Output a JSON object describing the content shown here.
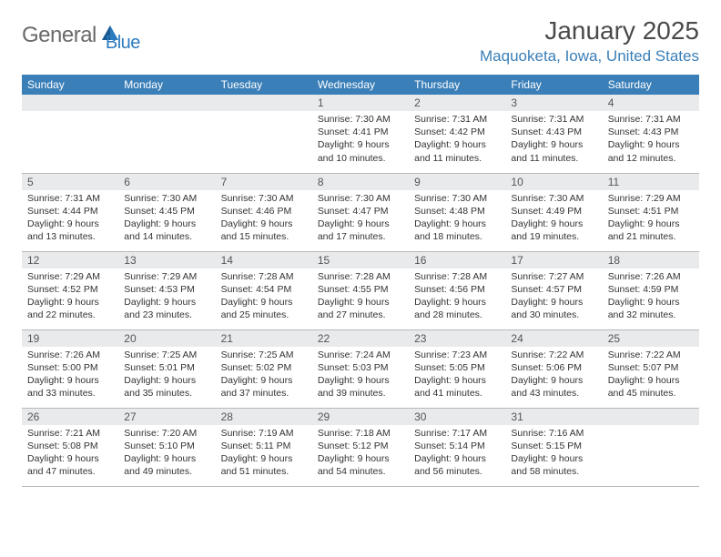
{
  "logo": {
    "general": "General",
    "blue": "Blue"
  },
  "title": "January 2025",
  "location": "Maquoketa, Iowa, United States",
  "colors": {
    "header_bg": "#3a7fb8",
    "header_text": "#ffffff",
    "daynum_bg": "#e8eaec",
    "border": "#b8b8b8",
    "body_text": "#333333",
    "location_text": "#3a7fb8",
    "logo_gray": "#6a6a6a",
    "logo_blue": "#2b7bbf"
  },
  "weekdays": [
    "Sunday",
    "Monday",
    "Tuesday",
    "Wednesday",
    "Thursday",
    "Friday",
    "Saturday"
  ],
  "weeks": [
    [
      null,
      null,
      null,
      {
        "d": "1",
        "sr": "7:30 AM",
        "ss": "4:41 PM",
        "dl": "9 hours and 10 minutes."
      },
      {
        "d": "2",
        "sr": "7:31 AM",
        "ss": "4:42 PM",
        "dl": "9 hours and 11 minutes."
      },
      {
        "d": "3",
        "sr": "7:31 AM",
        "ss": "4:43 PM",
        "dl": "9 hours and 11 minutes."
      },
      {
        "d": "4",
        "sr": "7:31 AM",
        "ss": "4:43 PM",
        "dl": "9 hours and 12 minutes."
      }
    ],
    [
      {
        "d": "5",
        "sr": "7:31 AM",
        "ss": "4:44 PM",
        "dl": "9 hours and 13 minutes."
      },
      {
        "d": "6",
        "sr": "7:30 AM",
        "ss": "4:45 PM",
        "dl": "9 hours and 14 minutes."
      },
      {
        "d": "7",
        "sr": "7:30 AM",
        "ss": "4:46 PM",
        "dl": "9 hours and 15 minutes."
      },
      {
        "d": "8",
        "sr": "7:30 AM",
        "ss": "4:47 PM",
        "dl": "9 hours and 17 minutes."
      },
      {
        "d": "9",
        "sr": "7:30 AM",
        "ss": "4:48 PM",
        "dl": "9 hours and 18 minutes."
      },
      {
        "d": "10",
        "sr": "7:30 AM",
        "ss": "4:49 PM",
        "dl": "9 hours and 19 minutes."
      },
      {
        "d": "11",
        "sr": "7:29 AM",
        "ss": "4:51 PM",
        "dl": "9 hours and 21 minutes."
      }
    ],
    [
      {
        "d": "12",
        "sr": "7:29 AM",
        "ss": "4:52 PM",
        "dl": "9 hours and 22 minutes."
      },
      {
        "d": "13",
        "sr": "7:29 AM",
        "ss": "4:53 PM",
        "dl": "9 hours and 23 minutes."
      },
      {
        "d": "14",
        "sr": "7:28 AM",
        "ss": "4:54 PM",
        "dl": "9 hours and 25 minutes."
      },
      {
        "d": "15",
        "sr": "7:28 AM",
        "ss": "4:55 PM",
        "dl": "9 hours and 27 minutes."
      },
      {
        "d": "16",
        "sr": "7:28 AM",
        "ss": "4:56 PM",
        "dl": "9 hours and 28 minutes."
      },
      {
        "d": "17",
        "sr": "7:27 AM",
        "ss": "4:57 PM",
        "dl": "9 hours and 30 minutes."
      },
      {
        "d": "18",
        "sr": "7:26 AM",
        "ss": "4:59 PM",
        "dl": "9 hours and 32 minutes."
      }
    ],
    [
      {
        "d": "19",
        "sr": "7:26 AM",
        "ss": "5:00 PM",
        "dl": "9 hours and 33 minutes."
      },
      {
        "d": "20",
        "sr": "7:25 AM",
        "ss": "5:01 PM",
        "dl": "9 hours and 35 minutes."
      },
      {
        "d": "21",
        "sr": "7:25 AM",
        "ss": "5:02 PM",
        "dl": "9 hours and 37 minutes."
      },
      {
        "d": "22",
        "sr": "7:24 AM",
        "ss": "5:03 PM",
        "dl": "9 hours and 39 minutes."
      },
      {
        "d": "23",
        "sr": "7:23 AM",
        "ss": "5:05 PM",
        "dl": "9 hours and 41 minutes."
      },
      {
        "d": "24",
        "sr": "7:22 AM",
        "ss": "5:06 PM",
        "dl": "9 hours and 43 minutes."
      },
      {
        "d": "25",
        "sr": "7:22 AM",
        "ss": "5:07 PM",
        "dl": "9 hours and 45 minutes."
      }
    ],
    [
      {
        "d": "26",
        "sr": "7:21 AM",
        "ss": "5:08 PM",
        "dl": "9 hours and 47 minutes."
      },
      {
        "d": "27",
        "sr": "7:20 AM",
        "ss": "5:10 PM",
        "dl": "9 hours and 49 minutes."
      },
      {
        "d": "28",
        "sr": "7:19 AM",
        "ss": "5:11 PM",
        "dl": "9 hours and 51 minutes."
      },
      {
        "d": "29",
        "sr": "7:18 AM",
        "ss": "5:12 PM",
        "dl": "9 hours and 54 minutes."
      },
      {
        "d": "30",
        "sr": "7:17 AM",
        "ss": "5:14 PM",
        "dl": "9 hours and 56 minutes."
      },
      {
        "d": "31",
        "sr": "7:16 AM",
        "ss": "5:15 PM",
        "dl": "9 hours and 58 minutes."
      },
      null
    ]
  ],
  "labels": {
    "sunrise": "Sunrise:",
    "sunset": "Sunset:",
    "daylight": "Daylight:"
  }
}
